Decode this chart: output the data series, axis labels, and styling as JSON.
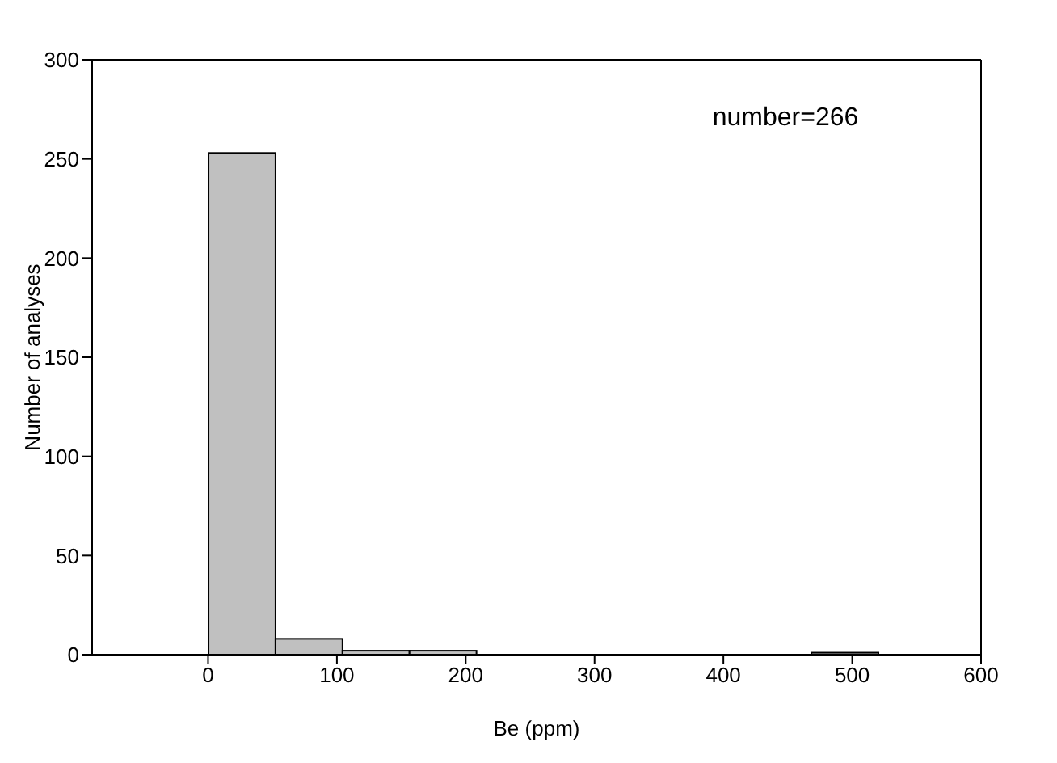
{
  "chart_data": {
    "type": "histogram",
    "xlabel": "Be (ppm)",
    "ylabel": "Number of analyses",
    "bins": [
      0,
      52,
      104,
      156,
      208,
      260,
      312,
      364,
      416,
      468,
      520
    ],
    "values": [
      253,
      8,
      2,
      2,
      0,
      0,
      0,
      0,
      0,
      1
    ],
    "color": "#c0c0c0",
    "xlim": [
      -90,
      600
    ],
    "xticks": [
      0,
      100,
      200,
      300,
      400,
      500,
      600
    ],
    "ylim": [
      0,
      300
    ],
    "yticks": [
      0,
      50,
      100,
      150,
      200,
      250,
      300
    ],
    "grid": false,
    "annotations": [
      "number=266"
    ]
  }
}
